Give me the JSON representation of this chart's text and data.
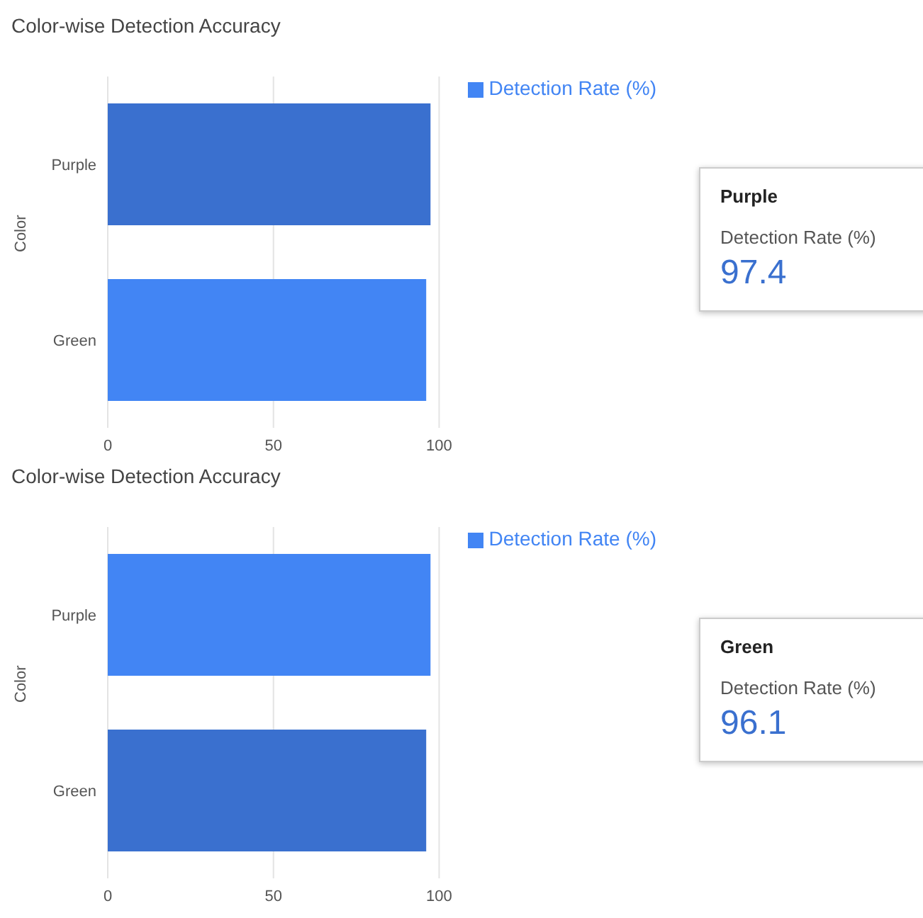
{
  "chart_data": [
    {
      "type": "bar",
      "orientation": "horizontal",
      "title": "Color-wise Detection Accuracy",
      "ylabel": "Color",
      "categories": [
        "Purple",
        "Green"
      ],
      "series": [
        {
          "name": "Detection Rate (%)",
          "color": "#4285f4",
          "colors": [
            "#3a70cf",
            "#4285f4"
          ],
          "values": [
            97.4,
            96.1
          ]
        }
      ],
      "xlim": [
        0,
        100
      ],
      "xticks": [
        0,
        50,
        100
      ],
      "grid": "x",
      "legend": "top right",
      "annotations": [
        "Purple",
        "Detection Rate (%)",
        "97.4"
      ]
    },
    {
      "type": "bar",
      "orientation": "horizontal",
      "title": "Color-wise Detection Accuracy",
      "ylabel": "Color",
      "categories": [
        "Purple",
        "Green"
      ],
      "series": [
        {
          "name": "Detection Rate (%)",
          "color": "#4285f4",
          "colors": [
            "#4285f4",
            "#3a70cf"
          ],
          "values": [
            97.4,
            96.1
          ]
        }
      ],
      "xlim": [
        0,
        100
      ],
      "xticks": [
        0,
        50,
        100
      ],
      "grid": "x",
      "legend": "top right",
      "annotations": [
        "Green",
        "Detection Rate (%)",
        "96.1"
      ]
    }
  ]
}
